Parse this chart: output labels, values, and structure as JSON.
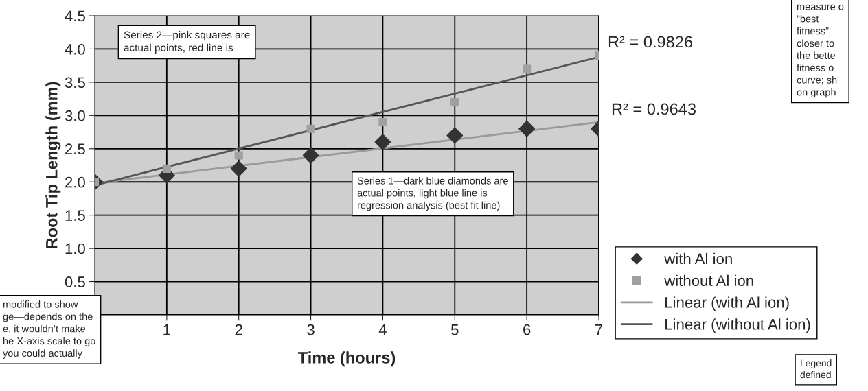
{
  "chart_data": {
    "type": "scatter",
    "xlabel": "Time (hours)",
    "ylabel": "Root Tip Length (mm)",
    "xlim": [
      0,
      7
    ],
    "xticks": [
      {
        "value": 0,
        "label": null
      },
      1,
      2,
      3,
      4,
      5,
      6,
      7
    ],
    "ylim": [
      0,
      4.5
    ],
    "yticks": [
      {
        "value": 0,
        "label": null
      },
      0.5,
      {
        "value": 1,
        "label": "1.0"
      },
      1.5,
      {
        "value": 2,
        "label": "2.0"
      },
      2.5,
      {
        "value": 3,
        "label": "3.0"
      },
      3.5,
      {
        "value": 4,
        "label": "4.0"
      },
      4.5
    ],
    "grid": true,
    "legend": "right",
    "series": [
      {
        "name": "with Al ion",
        "marker": "diamond",
        "color": "#333333",
        "x": [
          0,
          1,
          2,
          3,
          4,
          5,
          6,
          7
        ],
        "values": [
          2.0,
          2.1,
          2.2,
          2.4,
          2.6,
          2.7,
          2.8,
          2.8
        ]
      },
      {
        "name": "without Al ion",
        "marker": "square",
        "color": "#a0a0a0",
        "x": [
          0,
          1,
          2,
          3,
          4,
          5,
          6,
          7
        ],
        "values": [
          2.0,
          2.2,
          2.4,
          2.8,
          2.9,
          3.2,
          3.7,
          3.9
        ]
      },
      {
        "name": "Linear (with Al ion)",
        "type": "line",
        "color": "#9a9a9a",
        "x": [
          0,
          7
        ],
        "values": [
          1.98,
          2.9
        ]
      },
      {
        "name": "Linear (without Al ion)",
        "type": "line",
        "color": "#555555",
        "x": [
          0,
          7
        ],
        "values": [
          1.95,
          3.88
        ]
      }
    ],
    "annotations": [
      "Series 2—pink squares are\nactual points, red line is",
      "Series 1—dark blue diamonds are\nactual points, light blue line is\nregression analysis (best fit line)",
      "R² = 0.9826",
      "R² = 0.9643",
      "measure o\n“best\nfitness”\ncloser to\nthe bette\nfitness o\ncurve; sh\non graph",
      "modified to show\nge—depends on the\ne, it wouldn’t make\nhe X-axis scale to go\nyou could actually",
      "Legend\ndefined"
    ]
  }
}
